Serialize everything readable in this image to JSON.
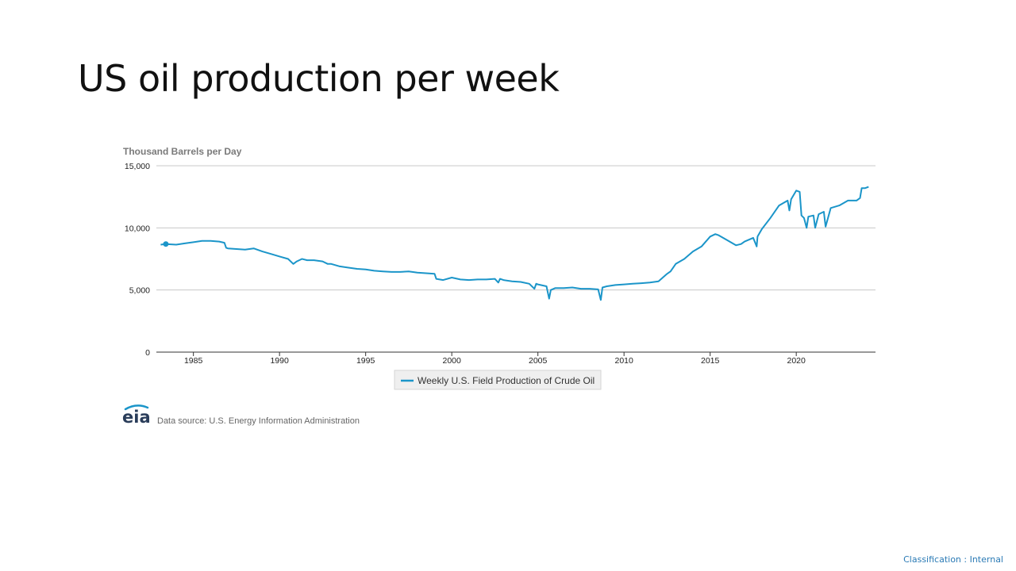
{
  "slide": {
    "title": "US oil production per week",
    "classification": "Classification : Internal"
  },
  "source": {
    "logo_text": "eia",
    "text": "Data source: U.S. Energy Information Administration"
  },
  "colors": {
    "series": "#1b95c9",
    "grid": "#c8c8c8",
    "axis": "#333333"
  },
  "chart_data": {
    "type": "line",
    "title": "",
    "ylabel": "Thousand Barrels per Day",
    "xlabel": "",
    "xlim": [
      1982.85,
      2024.6
    ],
    "ylim": [
      0,
      15000
    ],
    "yticks": [
      0,
      5000,
      10000,
      15000
    ],
    "ytick_labels": [
      "0",
      "5,000",
      "10,000",
      "15,000"
    ],
    "xticks": [
      1985,
      1990,
      1995,
      2000,
      2005,
      2010,
      2015,
      2020
    ],
    "xtick_labels": [
      "1985",
      "1990",
      "1995",
      "2000",
      "2005",
      "2010",
      "2015",
      "2020"
    ],
    "grid": true,
    "legend_position": "bottom-center",
    "series": [
      {
        "name": "Weekly U.S. Field Production of Crude Oil",
        "marker_at_start": true,
        "x": [
          1983.1,
          1983.4,
          1984.0,
          1984.5,
          1985.0,
          1985.5,
          1986.0,
          1986.5,
          1986.8,
          1986.9,
          1987.0,
          1987.5,
          1988.0,
          1988.5,
          1989.0,
          1989.5,
          1990.0,
          1990.5,
          1990.8,
          1991.0,
          1991.3,
          1991.6,
          1992.0,
          1992.5,
          1992.8,
          1993.0,
          1993.5,
          1994.0,
          1994.5,
          1995.0,
          1995.5,
          1996.0,
          1996.5,
          1997.0,
          1997.5,
          1998.0,
          1998.5,
          1999.0,
          1999.1,
          1999.5,
          2000.0,
          2000.5,
          2001.0,
          2001.5,
          2002.0,
          2002.5,
          2002.7,
          2002.8,
          2003.0,
          2003.5,
          2004.0,
          2004.5,
          2004.8,
          2004.9,
          2005.0,
          2005.5,
          2005.65,
          2005.75,
          2006.0,
          2006.5,
          2007.0,
          2007.5,
          2008.0,
          2008.5,
          2008.65,
          2008.75,
          2009.0,
          2009.5,
          2010.0,
          2010.5,
          2011.0,
          2011.5,
          2012.0,
          2012.5,
          2012.7,
          2013.0,
          2013.5,
          2014.0,
          2014.5,
          2015.0,
          2015.3,
          2015.5,
          2016.0,
          2016.5,
          2016.8,
          2017.0,
          2017.5,
          2017.7,
          2017.75,
          2018.0,
          2018.5,
          2019.0,
          2019.5,
          2019.6,
          2019.7,
          2020.0,
          2020.2,
          2020.3,
          2020.45,
          2020.6,
          2020.7,
          2021.0,
          2021.1,
          2021.3,
          2021.6,
          2021.7,
          2022.0,
          2022.5,
          2023.0,
          2023.5,
          2023.7,
          2023.8,
          2024.0,
          2024.2
        ],
        "values": [
          8650,
          8700,
          8650,
          8750,
          8850,
          8950,
          8950,
          8900,
          8800,
          8400,
          8350,
          8300,
          8250,
          8350,
          8100,
          7900,
          7700,
          7500,
          7100,
          7300,
          7500,
          7400,
          7400,
          7300,
          7100,
          7100,
          6900,
          6800,
          6700,
          6650,
          6550,
          6500,
          6450,
          6450,
          6500,
          6400,
          6350,
          6300,
          5900,
          5800,
          6000,
          5850,
          5800,
          5850,
          5850,
          5900,
          5600,
          5900,
          5800,
          5700,
          5650,
          5500,
          5100,
          5500,
          5450,
          5300,
          4300,
          5000,
          5150,
          5150,
          5200,
          5100,
          5100,
          5050,
          4200,
          5200,
          5300,
          5400,
          5450,
          5500,
          5550,
          5600,
          5700,
          6300,
          6500,
          7100,
          7500,
          8100,
          8500,
          9300,
          9500,
          9400,
          9000,
          8600,
          8700,
          8900,
          9200,
          8500,
          9300,
          9900,
          10800,
          11800,
          12200,
          11400,
          12300,
          13000,
          12900,
          11000,
          10800,
          10000,
          10900,
          11000,
          10000,
          11100,
          11300,
          10100,
          11600,
          11800,
          12200,
          12200,
          12400,
          13200,
          13200,
          13300
        ]
      }
    ]
  }
}
